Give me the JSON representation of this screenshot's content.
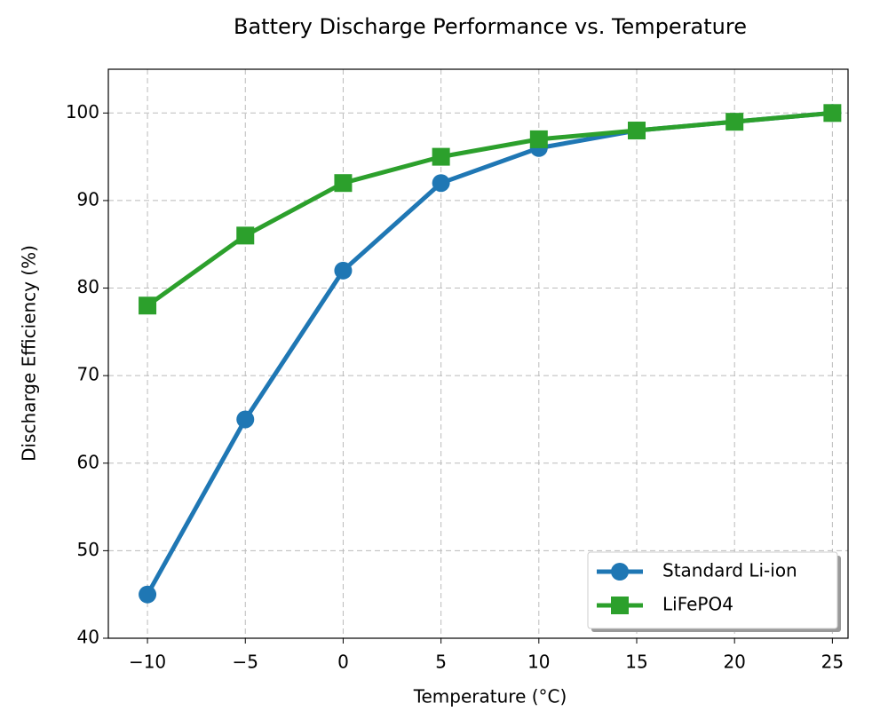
{
  "chart_data": {
    "type": "line",
    "title": "Battery Discharge Performance vs. Temperature",
    "xlabel": "Temperature (°C)",
    "ylabel": "Discharge Efficiency (%)",
    "x": [
      -10,
      -5,
      0,
      5,
      10,
      15,
      20,
      25
    ],
    "series": [
      {
        "name": "Standard Li-ion",
        "color": "#1f77b4",
        "marker": "circle",
        "values": [
          45,
          65,
          82,
          92,
          96,
          98,
          99,
          100
        ]
      },
      {
        "name": "LiFePO4",
        "color": "#2ca02c",
        "marker": "square",
        "values": [
          78,
          86,
          92,
          95,
          97,
          98,
          99,
          100
        ]
      }
    ],
    "xlim": [
      -12,
      25.8
    ],
    "ylim": [
      40,
      105
    ],
    "xticks": [
      {
        "value": -10,
        "label": "−10"
      },
      {
        "value": -5,
        "label": "−5"
      },
      0,
      5,
      10,
      15,
      20,
      25
    ],
    "yticks": [
      40,
      50,
      60,
      70,
      80,
      90,
      100
    ],
    "grid": true,
    "legend": "lower right"
  }
}
